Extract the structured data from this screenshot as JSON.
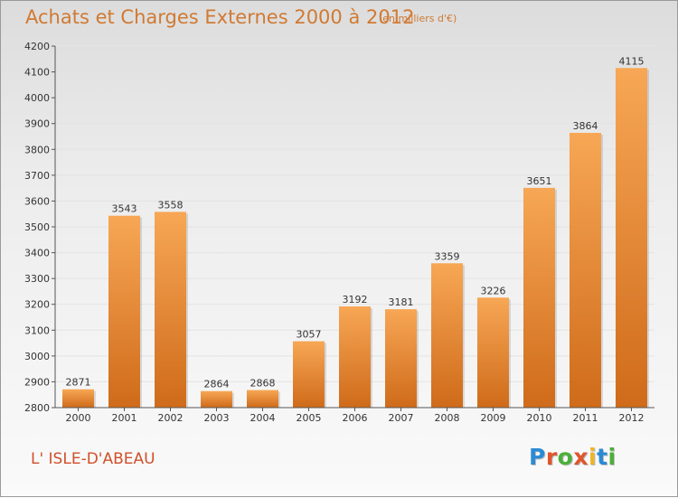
{
  "header": {
    "title": "Achats et Charges Externes 2000 à 2012",
    "unit": "(en milliers d'€)"
  },
  "footer": {
    "town": "L' ISLE-D'ABEAU",
    "logo": "Proxiti",
    "logo_colors": [
      "#2a8bd4",
      "#e0552c",
      "#4caf3a",
      "#e0552c",
      "#f0b428",
      "#2a8bd4",
      "#4caf3a"
    ]
  },
  "colors": {
    "bar_light": "#f7a755",
    "bar_dark": "#cf6b1a",
    "text": "#d07a33",
    "grid": "#e3e3e3"
  },
  "chart_data": {
    "type": "bar",
    "title": "Achats et Charges Externes 2000 à 2012",
    "subtitle": "(en milliers d'€)",
    "categories": [
      "2000",
      "2001",
      "2002",
      "2003",
      "2004",
      "2005",
      "2006",
      "2007",
      "2008",
      "2009",
      "2010",
      "2011",
      "2012"
    ],
    "values": [
      2871,
      3543,
      3558,
      2864,
      2868,
      3057,
      3192,
      3181,
      3359,
      3226,
      3651,
      3864,
      4115
    ],
    "ylim": [
      2800,
      4200
    ],
    "yticks": [
      2800,
      2900,
      3000,
      3100,
      3200,
      3300,
      3400,
      3500,
      3600,
      3700,
      3800,
      3900,
      4000,
      4100,
      4200
    ],
    "grid": true,
    "data_labels": true
  }
}
